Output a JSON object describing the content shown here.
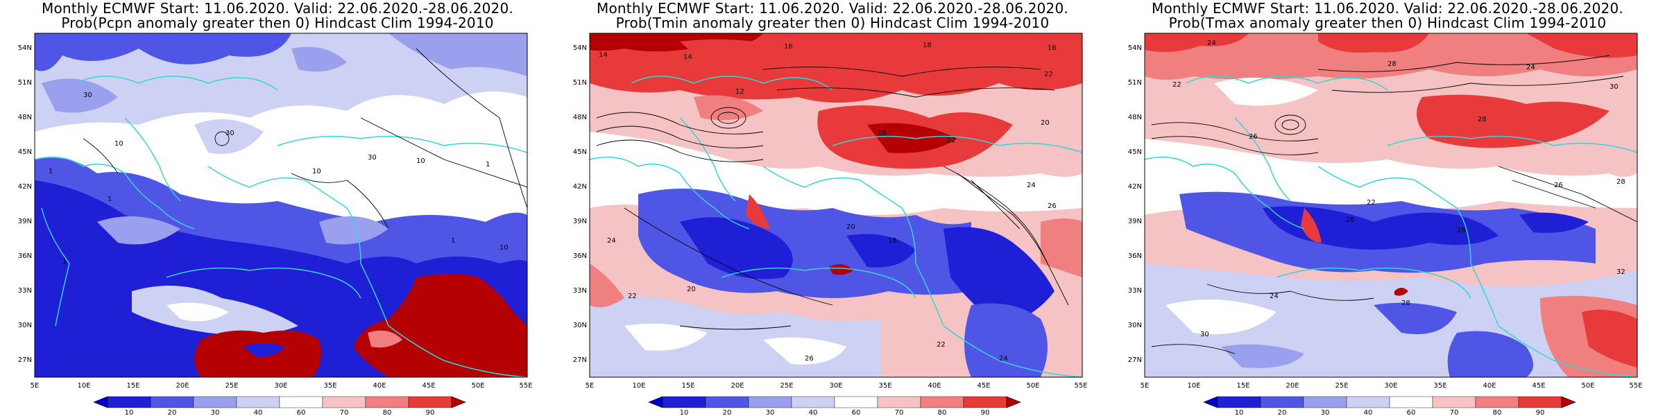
{
  "colors": {
    "deep_blue": "#1f1fd6",
    "mid_blue": "#4f56e6",
    "light_blue": "#9aa0ee",
    "pale_blue": "#cdd2f5",
    "white": "#ffffff",
    "pale_red": "#f5c3c3",
    "light_red": "#f08080",
    "mid_red": "#e83a3a",
    "deep_red": "#b40000",
    "coast": "#33d6d6"
  },
  "colorbar": {
    "labels": [
      "10",
      "20",
      "30",
      "40",
      "60",
      "70",
      "80",
      "90"
    ]
  },
  "axes": {
    "lat_ticks": [
      "54N",
      "51N",
      "48N",
      "45N",
      "42N",
      "39N",
      "36N",
      "33N",
      "30N",
      "27N"
    ],
    "lon_ticks": [
      "5E",
      "10E",
      "15E",
      "20E",
      "25E",
      "30E",
      "35E",
      "40E",
      "45E",
      "50E",
      "55E"
    ]
  },
  "panels": [
    {
      "title_line1": "Monthly ECMWF Start: 11.06.2020. Valid: 22.06.2020.-28.06.2020.",
      "title_line2": "Prob(Pcpn anomaly greater then 0) Hindcast Clim 1994-2010",
      "contour_labels": [
        "10",
        "30",
        "30",
        "10",
        "1",
        "1",
        "1",
        "1",
        "10",
        "30",
        "1",
        "10"
      ]
    },
    {
      "title_line1": "Monthly ECMWF Start: 11.06.2020. Valid: 22.06.2020.-28.06.2020.",
      "title_line2": "Prob(Tmin anomaly greater then 0) Hindcast Clim 1994-2010",
      "contour_labels": [
        "14",
        "16",
        "18",
        "16",
        "14",
        "12",
        "20",
        "22",
        "18",
        "22",
        "24",
        "26",
        "24",
        "22",
        "20",
        "18",
        "20",
        "24",
        "22",
        "26"
      ]
    },
    {
      "title_line1": "Monthly ECMWF Start: 11.06.2020. Valid: 22.06.2020.-28.06.2020.",
      "title_line2": "Prob(Tmax anomaly greater then 0) Hindcast Clim 1994-2010",
      "contour_labels": [
        "24",
        "22",
        "28",
        "30",
        "26",
        "28",
        "24",
        "26",
        "22",
        "28",
        "26",
        "24",
        "32",
        "28",
        "26",
        "30"
      ]
    }
  ]
}
